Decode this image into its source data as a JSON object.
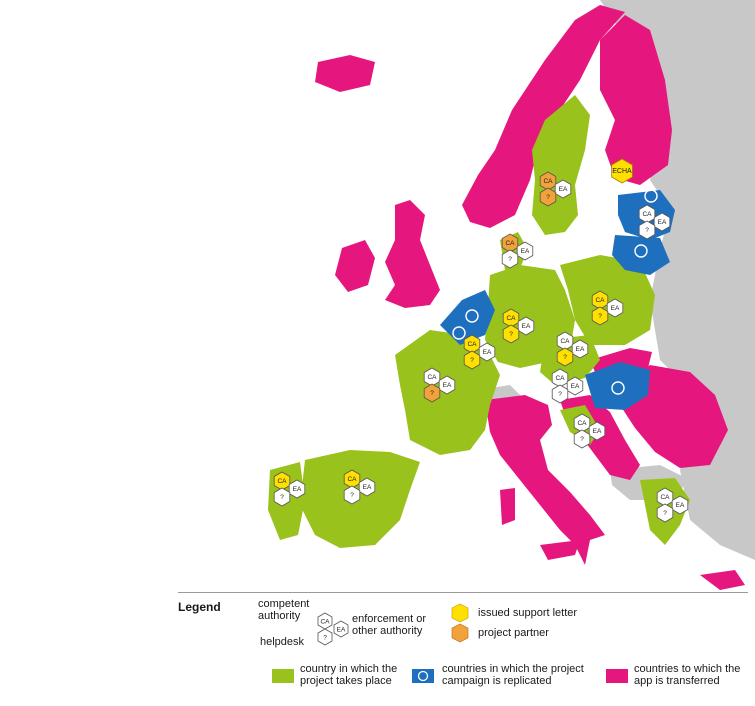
{
  "colors": {
    "project_country": "#99c21c",
    "replicated": "#1f6fbf",
    "transferred": "#e5177e",
    "non_eu": "#c8c8c8",
    "support_letter": "#ffe000",
    "project_partner": "#f2a23a"
  },
  "badges": {
    "ca": "CA",
    "ea": "EA",
    "helpdesk": "?",
    "echa": "ECHA"
  },
  "legend": {
    "title": "Legend",
    "competent_authority": "competent authority",
    "enforcement": "enforcement or other authority",
    "helpdesk": "helpdesk",
    "support_letter": "issued support letter",
    "project_partner": "project partner",
    "project_country": "country in which the project takes place",
    "replicated": "countries in which the project campaign is replicated",
    "transferred": "countries to which the app is transferred"
  },
  "icons": [
    "hexagon-badge-icon",
    "replication-cycle-icon"
  ]
}
